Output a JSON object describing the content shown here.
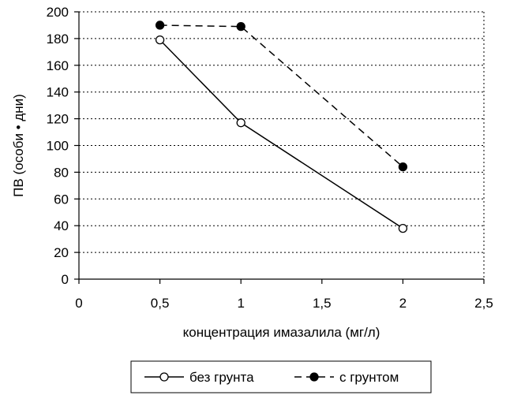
{
  "chart_data": {
    "type": "line",
    "xlabel": "концентрация имазалила (мг/л)",
    "ylabel": "ПВ (особи • дни)",
    "xlim": [
      0,
      2.5
    ],
    "ylim": [
      0,
      200
    ],
    "x_ticks": [
      0,
      0.5,
      1,
      1.5,
      2,
      2.5
    ],
    "x_tick_labels": [
      "0",
      "0,5",
      "1",
      "1,5",
      "2",
      "2,5"
    ],
    "y_ticks": [
      0,
      20,
      40,
      60,
      80,
      100,
      120,
      140,
      160,
      180,
      200
    ],
    "y_tick_labels": [
      "0",
      "20",
      "40",
      "60",
      "80",
      "100",
      "120",
      "140",
      "160",
      "180",
      "200"
    ],
    "grid": "horizontal-dashed",
    "legend_position": "bottom",
    "series": [
      {
        "name": "без грунта",
        "line_style": "solid",
        "marker": "open-circle",
        "color": "#000000",
        "points": [
          {
            "x": 0.5,
            "y": 179
          },
          {
            "x": 1,
            "y": 117
          },
          {
            "x": 2,
            "y": 38
          }
        ]
      },
      {
        "name": "с грунтом",
        "line_style": "dashed",
        "marker": "filled-circle",
        "color": "#000000",
        "points": [
          {
            "x": 0.5,
            "y": 190
          },
          {
            "x": 1,
            "y": 189
          },
          {
            "x": 2,
            "y": 84
          }
        ]
      }
    ]
  }
}
